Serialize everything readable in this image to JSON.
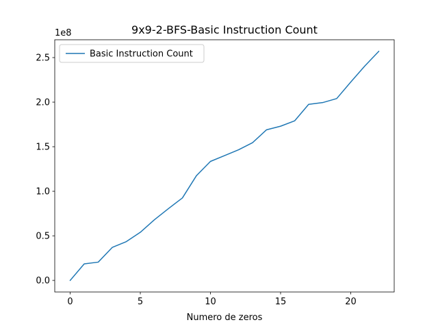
{
  "chart_data": {
    "type": "line",
    "title": "9x9-2-BFS-Basic Instruction Count",
    "xlabel": "Numero de zeros",
    "ylabel": "",
    "y_multiplier_label": "1e8",
    "xlim": [
      -1.1,
      23.1
    ],
    "ylim": [
      -0.13,
      2.7
    ],
    "x_ticks": [
      0,
      5,
      10,
      15,
      20
    ],
    "y_ticks": [
      0.0,
      0.5,
      1.0,
      1.5,
      2.0,
      2.5
    ],
    "y_tick_labels": [
      "0.0",
      "0.5",
      "1.0",
      "1.5",
      "2.0",
      "2.5"
    ],
    "grid": false,
    "legend": "top-left",
    "series": [
      {
        "name": "Basic Instruction Count",
        "color": "#1f77b4",
        "x": [
          0,
          1,
          2,
          3,
          4,
          5,
          6,
          7,
          8,
          9,
          10,
          11,
          12,
          13,
          14,
          15,
          16,
          17,
          18,
          19,
          20,
          21,
          22
        ],
        "y": [
          0.0,
          0.185,
          0.205,
          0.37,
          0.435,
          0.54,
          0.68,
          0.805,
          0.925,
          1.175,
          1.335,
          1.4,
          1.465,
          1.545,
          1.69,
          1.73,
          1.79,
          1.975,
          1.995,
          2.04,
          2.225,
          2.405,
          2.57
        ]
      }
    ]
  }
}
